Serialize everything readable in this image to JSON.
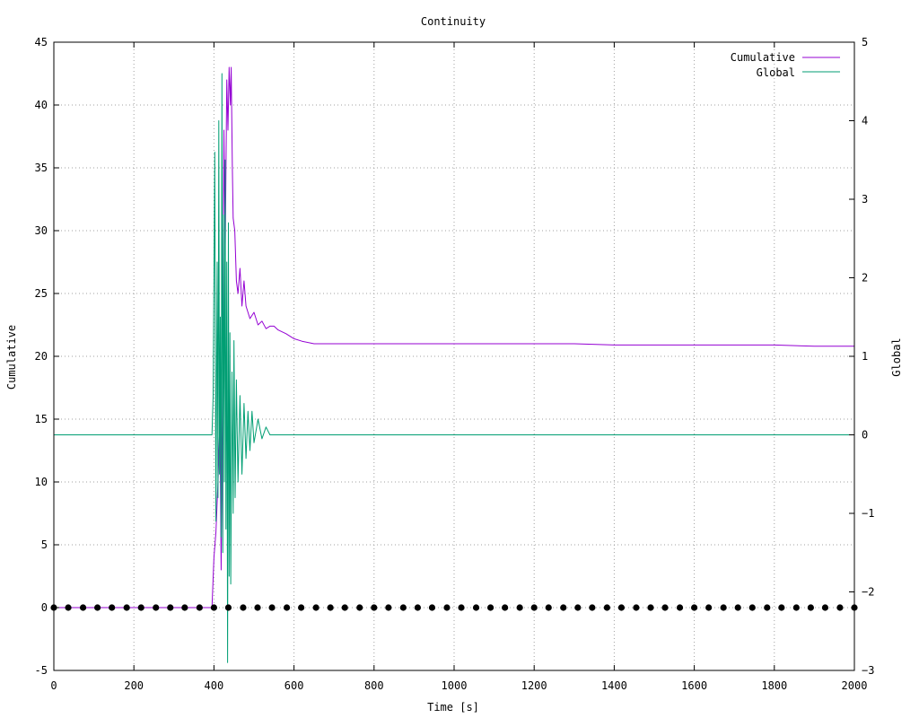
{
  "chart_data": {
    "type": "line",
    "title": "Continuity",
    "xlabel": "Time [s]",
    "ylabel": "Cumulative",
    "y2label": "Global",
    "xlim": [
      0,
      2000
    ],
    "ylim": [
      -5,
      45
    ],
    "y2lim": [
      -3,
      5
    ],
    "xticks": [
      0,
      200,
      400,
      600,
      800,
      1000,
      1200,
      1400,
      1600,
      1800,
      2000
    ],
    "yticks": [
      -5,
      0,
      5,
      10,
      15,
      20,
      25,
      30,
      35,
      40,
      45
    ],
    "y2ticks": [
      -3,
      -2,
      -1,
      0,
      1,
      2,
      3,
      4,
      5
    ],
    "grid": true,
    "legend_position": "top-right",
    "series": [
      {
        "name": "Cumulative",
        "axis": "y",
        "color": "#9400d3",
        "x": [
          0,
          100,
          200,
          300,
          395,
          400,
          405,
          410,
          415,
          418,
          422,
          425,
          428,
          432,
          435,
          438,
          441,
          443,
          446,
          448,
          452,
          456,
          460,
          465,
          470,
          475,
          480,
          490,
          500,
          510,
          520,
          530,
          540,
          550,
          560,
          580,
          600,
          620,
          650,
          680,
          700,
          800,
          900,
          1000,
          1100,
          1200,
          1300,
          1400,
          1500,
          1600,
          1700,
          1800,
          1900,
          2000
        ],
        "y": [
          0,
          0,
          0,
          0,
          0,
          4,
          6,
          10,
          15,
          3,
          20,
          38,
          28,
          42,
          38,
          43,
          40,
          43,
          35,
          31,
          30,
          26,
          25,
          27,
          24,
          26,
          24,
          23,
          23.5,
          22.5,
          22.8,
          22.2,
          22.4,
          22.4,
          22.1,
          21.8,
          21.4,
          21.2,
          21.0,
          21.0,
          21.0,
          21.0,
          21.0,
          21.0,
          21.0,
          21.0,
          21.0,
          20.9,
          20.9,
          20.9,
          20.9,
          20.9,
          20.8,
          20.8
        ]
      },
      {
        "name": "Global",
        "axis": "y2",
        "color": "#009e73",
        "x": [
          0,
          100,
          200,
          300,
          395,
          398,
          402,
          405,
          408,
          410,
          412,
          414,
          416,
          418,
          420,
          422,
          424,
          426,
          428,
          430,
          432,
          434,
          436,
          438,
          440,
          442,
          445,
          448,
          450,
          453,
          456,
          460,
          465,
          470,
          475,
          480,
          485,
          490,
          495,
          500,
          510,
          520,
          530,
          540,
          560,
          600,
          700,
          800,
          900,
          1000,
          1100,
          1200,
          1300,
          1400,
          1500,
          1600,
          1700,
          1800,
          1900,
          2000
        ],
        "y": [
          0,
          0,
          0,
          0,
          0,
          0.5,
          3.6,
          -1.1,
          2.2,
          -0.8,
          4.0,
          -0.5,
          1.5,
          -1.3,
          4.6,
          -1.5,
          2.8,
          -0.6,
          3.5,
          -1.2,
          2.2,
          -2.9,
          2.7,
          -1.8,
          1.3,
          -1.9,
          0.8,
          -1.0,
          1.2,
          -0.8,
          0.7,
          -0.6,
          0.5,
          -0.5,
          0.4,
          -0.3,
          0.3,
          -0.2,
          0.3,
          -0.1,
          0.2,
          -0.05,
          0.1,
          0,
          0,
          0,
          0,
          0,
          0,
          0,
          0,
          0,
          0,
          0,
          0,
          0,
          0,
          0,
          0,
          0
        ]
      },
      {
        "name": "",
        "axis": "y",
        "style": "points",
        "color": "#000000",
        "x": [
          0,
          36,
          73,
          109,
          145,
          182,
          218,
          255,
          291,
          327,
          364,
          400,
          436,
          473,
          509,
          545,
          582,
          618,
          655,
          691,
          727,
          764,
          800,
          836,
          873,
          909,
          945,
          982,
          1018,
          1055,
          1091,
          1127,
          1164,
          1200,
          1236,
          1273,
          1309,
          1345,
          1382,
          1418,
          1455,
          1491,
          1527,
          1564,
          1600,
          1636,
          1673,
          1709,
          1745,
          1782,
          1818,
          1855,
          1891,
          1927,
          1964,
          2000
        ],
        "y": [
          0,
          0,
          0,
          0,
          0,
          0,
          0,
          0,
          0,
          0,
          0,
          0,
          0,
          0,
          0,
          0,
          0,
          0,
          0,
          0,
          0,
          0,
          0,
          0,
          0,
          0,
          0,
          0,
          0,
          0,
          0,
          0,
          0,
          0,
          0,
          0,
          0,
          0,
          0,
          0,
          0,
          0,
          0,
          0,
          0,
          0,
          0,
          0,
          0,
          0,
          0,
          0,
          0,
          0,
          0,
          0
        ]
      }
    ]
  }
}
